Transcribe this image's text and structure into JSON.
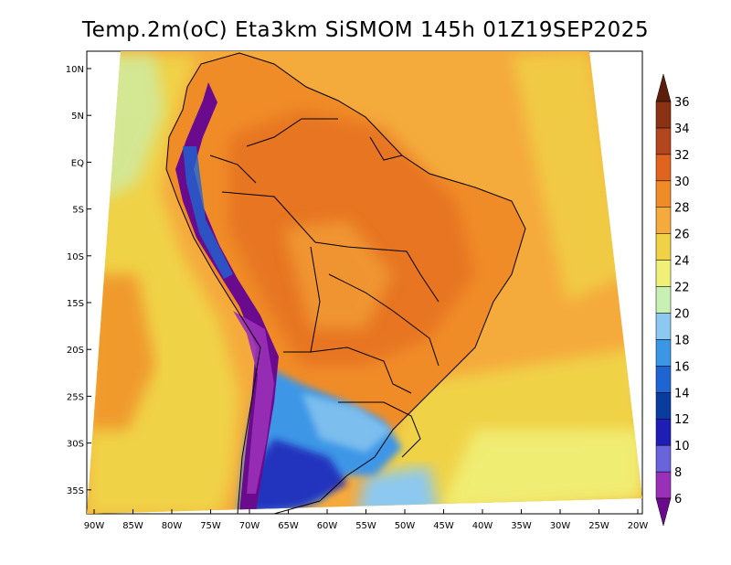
{
  "title": "Temp.2m(oC) Eta3km SiSMOM 145h 01Z19SEP2025",
  "lat_labels": [
    "10N",
    "5N",
    "EQ",
    "5S",
    "10S",
    "15S",
    "20S",
    "25S",
    "30S",
    "35S"
  ],
  "lon_labels": [
    "90W",
    "85W",
    "80W",
    "75W",
    "70W",
    "65W",
    "60W",
    "55W",
    "50W",
    "45W",
    "40W",
    "35W",
    "30W",
    "25W",
    "20W"
  ],
  "colorbar": {
    "labels": [
      "6",
      "8",
      "10",
      "12",
      "14",
      "16",
      "18",
      "20",
      "22",
      "24",
      "26",
      "28",
      "30",
      "32",
      "34",
      "36"
    ],
    "colors": [
      "#6a0a8c",
      "#9b30b8",
      "#6a64dc",
      "#1e1eb4",
      "#0a3ca0",
      "#1e64d2",
      "#3c96e6",
      "#8cc8f0",
      "#c8f0b4",
      "#f0f078",
      "#f0d246",
      "#f5aa3c",
      "#f08c28",
      "#e0641e",
      "#b4461e",
      "#8c3214",
      "#5a1e0a"
    ]
  },
  "fields": {
    "ocean_base": "#f5aa3c",
    "ocean_warm": "#f08c28",
    "ocean_south": "#f0d246",
    "land_base": "#f08c28",
    "andes_cold": "#6a0a8c",
    "south_cold": "#1e64d2"
  }
}
